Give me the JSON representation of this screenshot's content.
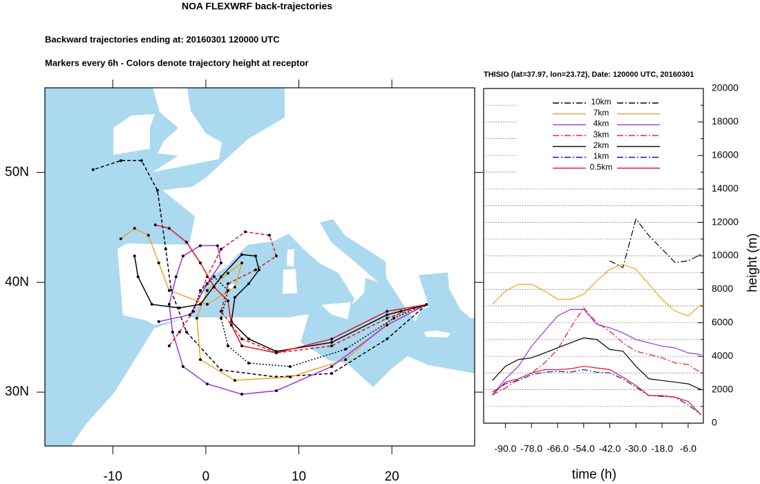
{
  "chart_data": [
    {
      "type": "map",
      "title": "NOA FLEXWRF back-trajectories",
      "subtitle": [
        "Backward trajectories ending at: 20160301  120000 UTC",
        "Markers every 6h - Colors denote trajectory height at receptor"
      ],
      "xlim": [
        -17.3,
        28.9
      ],
      "ylim": [
        25.1,
        57.7
      ],
      "xticks": [
        -10,
        0,
        10,
        20
      ],
      "yticks": [
        {
          "value": 30,
          "label": "30N"
        },
        {
          "value": 40,
          "label": "40N"
        },
        {
          "value": 50,
          "label": "50N"
        }
      ],
      "series": [
        {
          "color": "#000000",
          "dash": "dashed",
          "x": [
            23.72,
            19.48,
            13.53,
            7.58,
            1.64,
            -2.08,
            -3.72,
            -4.31,
            -5.2,
            -6.91,
            -9.14,
            -12.12
          ],
          "values": [
            37.97,
            34.84,
            31.7,
            31.38,
            32.01,
            35.47,
            39.25,
            43.02,
            48.36,
            51.07,
            51.07,
            50.25
          ]
        },
        {
          "color": "#f0a020",
          "dash": "solid",
          "x": [
            23.72,
            20.97,
            15.02,
            9.07,
            3.12,
            -0.59,
            -0.97,
            0.15,
            2.38,
            3.87,
            3.12,
            0.15,
            -3.94,
            -5.06,
            -6.17,
            -7.66,
            -9.14
          ],
          "values": [
            37.97,
            37.36,
            32.96,
            31.38,
            31.07,
            32.96,
            36.73,
            39.25,
            40.82,
            41.76,
            39.56,
            37.99,
            39.25,
            41.76,
            44.28,
            44.91,
            43.96
          ]
        },
        {
          "color": "#9a33e6",
          "dash": "solid",
          "x": [
            23.72,
            19.48,
            13.53,
            7.58,
            3.87,
            0.15,
            -2.45,
            -3.57,
            -3.94,
            -3.2,
            -2.45,
            -0.59,
            1.26,
            1.64,
            0.15,
            -1.71,
            -5.06
          ],
          "values": [
            37.97,
            36.1,
            32.33,
            30.13,
            29.81,
            30.75,
            32.33,
            35.47,
            37.99,
            40.5,
            42.39,
            43.33,
            43.33,
            41.76,
            39.87,
            37.04,
            36.42
          ]
        },
        {
          "color": "#e8101a",
          "dash": "dashed",
          "x": [
            23.72,
            19.48,
            13.53,
            7.58,
            3.87,
            1.64,
            2.38,
            5.35,
            7.58,
            6.84,
            4.24,
            1.64,
            0.15,
            -1.34,
            -2.83,
            -3.94
          ],
          "values": [
            37.97,
            36.73,
            34.21,
            33.58,
            34.84,
            37.36,
            39.87,
            41.13,
            42.39,
            44.28,
            44.59,
            43.02,
            40.5,
            37.36,
            35.47,
            34.21
          ]
        },
        {
          "color": "#000000",
          "dash": "solid",
          "x": [
            23.72,
            19.48,
            13.53,
            7.58,
            4.61,
            2.75,
            3.12,
            4.61,
            5.72,
            5.35,
            3.87,
            1.64,
            -0.59,
            -2.83,
            -5.8,
            -7.29,
            -7.66
          ],
          "values": [
            37.97,
            37.04,
            34.53,
            33.71,
            34.84,
            36.42,
            38.62,
            39.87,
            41.13,
            42.39,
            42.52,
            40.5,
            37.99,
            37.67,
            37.99,
            40.5,
            42.39
          ]
        },
        {
          "color": "#000000",
          "dash": "dotted",
          "x": [
            23.72,
            20.22,
            15.02,
            9.07,
            4.61,
            2.38,
            1.64,
            2.38,
            0.89,
            -0.59,
            -1.34
          ],
          "values": [
            37.97,
            36.73,
            33.9,
            32.33,
            32.64,
            34.21,
            36.73,
            39.25,
            40.5,
            39.25,
            37.36
          ]
        },
        {
          "color": "#e8101a",
          "dash": "solid",
          "x": [
            23.72,
            19.48,
            13.53,
            7.58,
            3.87,
            2.75,
            2.38,
            0.89,
            -0.59,
            -2.08,
            -3.94,
            -5.43
          ],
          "values": [
            37.97,
            37.36,
            34.84,
            33.58,
            34.21,
            36.1,
            38.3,
            39.56,
            41.76,
            43.65,
            44.91,
            45.22
          ]
        }
      ]
    },
    {
      "type": "line",
      "title": "THISIO (lat=37.97,  lon=23.72), Date: 120000 UTC, 20160301",
      "xlabel": "time (h)",
      "ylabel": "height (m)",
      "x": [
        -96,
        -90,
        -84,
        -78,
        -72,
        -66,
        -60,
        -54,
        -48,
        -42,
        -36,
        -30,
        -24,
        -18,
        -12,
        -6,
        0
      ],
      "xlim": [
        -100,
        1
      ],
      "xticks": [
        {
          "value": -90,
          "label": "-90.0"
        },
        {
          "value": -78,
          "label": "-78.0"
        },
        {
          "value": -66,
          "label": "-66.0"
        },
        {
          "value": -54,
          "label": "-54.0"
        },
        {
          "value": -42,
          "label": "-42.0"
        },
        {
          "value": -30,
          "label": "-30.0"
        },
        {
          "value": -18,
          "label": "-18.0"
        },
        {
          "value": -6,
          "label": "-6.0"
        }
      ],
      "ylim": [
        0,
        20000
      ],
      "yticks": [
        0,
        2000,
        4000,
        6000,
        8000,
        10000,
        12000,
        14000,
        16000,
        18000,
        20000
      ],
      "yminorticks": [
        1000,
        3000,
        5000,
        7000,
        9000,
        11000,
        13000,
        15000,
        17000,
        19000
      ],
      "grid": true,
      "series": [
        {
          "name": "10km",
          "color": "#000000",
          "dash": "dashdot",
          "values": [
            null,
            null,
            null,
            null,
            null,
            null,
            null,
            null,
            null,
            9700,
            9300,
            12200,
            11200,
            10400,
            9600,
            9700,
            10100
          ]
        },
        {
          "name": "7km",
          "color": "#f0a020",
          "dash": "solid",
          "values": [
            7100,
            7900,
            8300,
            8300,
            7900,
            7400,
            7400,
            7700,
            8500,
            9200,
            9500,
            9200,
            8300,
            7400,
            6700,
            6400,
            7100
          ]
        },
        {
          "name": "4km",
          "color": "#9a33e6",
          "dash": "solid",
          "values": [
            1650,
            2650,
            3400,
            4600,
            5500,
            6400,
            6800,
            6800,
            5900,
            5700,
            5400,
            5000,
            4800,
            4600,
            4500,
            4200,
            4100
          ]
        },
        {
          "name": "3km",
          "color": "#e8101a",
          "dash": "dashdot",
          "values": [
            1700,
            2100,
            2650,
            3000,
            3600,
            4400,
            5700,
            6900,
            6000,
            5500,
            4800,
            4300,
            4100,
            3900,
            3600,
            3500,
            3000
          ]
        },
        {
          "name": "2km",
          "color": "#000000",
          "dash": "solid",
          "values": [
            2550,
            3400,
            3800,
            3900,
            4200,
            4500,
            4800,
            5100,
            5000,
            4400,
            4300,
            3400,
            2650,
            2550,
            2450,
            2350,
            2000
          ]
        },
        {
          "name": "1km",
          "color": "#1010e0",
          "dash": "dashdot",
          "values": [
            1850,
            2350,
            2550,
            2900,
            3050,
            3100,
            3050,
            3200,
            3050,
            3000,
            2650,
            2150,
            1650,
            1600,
            1550,
            1100,
            500
          ]
        },
        {
          "name": "0.5km",
          "color": "#e8101a",
          "dash": "solid",
          "values": [
            1700,
            2450,
            2650,
            3000,
            3200,
            3200,
            3250,
            3400,
            3300,
            3200,
            2750,
            2250,
            1650,
            1650,
            1550,
            1300,
            500
          ]
        }
      ]
    }
  ]
}
